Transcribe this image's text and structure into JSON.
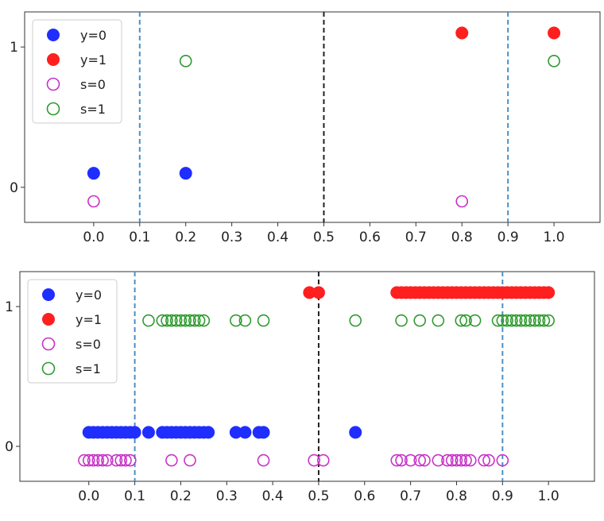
{
  "chart_data": [
    {
      "type": "scatter",
      "xlim": [
        -0.15,
        1.1
      ],
      "ylim": [
        -0.25,
        1.25
      ],
      "x_ticks": [
        "0.0",
        "0.1",
        "0.2",
        "0.3",
        "0.4",
        "0.5",
        "0.6",
        "0.7",
        "0.8",
        "0.9",
        "1.0"
      ],
      "y_ticks": [
        "0",
        "1"
      ],
      "vlines": [
        {
          "x": 0.1,
          "style": "dashed",
          "color": "#4a90c8"
        },
        {
          "x": 0.5,
          "style": "dashed",
          "color": "#222222"
        },
        {
          "x": 0.9,
          "style": "dashed",
          "color": "#4a90c8"
        }
      ],
      "legend": {
        "position": "upper-left",
        "entries": [
          {
            "label": "y=0",
            "marker": "filled",
            "color": "#1f2eff"
          },
          {
            "label": "y=1",
            "marker": "filled",
            "color": "#ff1f1f"
          },
          {
            "label": "s=0",
            "marker": "hollow",
            "color": "#c832c8"
          },
          {
            "label": "s=1",
            "marker": "hollow",
            "color": "#2e9a2e"
          }
        ]
      },
      "series": [
        {
          "name": "y=0",
          "marker": "filled",
          "color": "#1f2eff",
          "y": 0.1,
          "x": [
            0.0,
            0.2
          ]
        },
        {
          "name": "y=1",
          "marker": "filled",
          "color": "#ff1f1f",
          "y": 1.1,
          "x": [
            0.8,
            1.0
          ]
        },
        {
          "name": "s=0",
          "marker": "hollow",
          "color": "#c832c8",
          "y": -0.1,
          "x": [
            0.0,
            0.8
          ]
        },
        {
          "name": "s=1",
          "marker": "hollow",
          "color": "#2e9a2e",
          "y": 0.9,
          "x": [
            0.2,
            1.0
          ]
        }
      ]
    },
    {
      "type": "scatter",
      "xlim": [
        -0.15,
        1.1
      ],
      "ylim": [
        -0.25,
        1.25
      ],
      "x_ticks": [
        "0.0",
        "0.1",
        "0.2",
        "0.3",
        "0.4",
        "0.5",
        "0.6",
        "0.7",
        "0.8",
        "0.9",
        "1.0"
      ],
      "y_ticks": [
        "0",
        "1"
      ],
      "vlines": [
        {
          "x": 0.1,
          "style": "dashed",
          "color": "#4a90c8"
        },
        {
          "x": 0.5,
          "style": "dashed",
          "color": "#222222"
        },
        {
          "x": 0.9,
          "style": "dashed",
          "color": "#4a90c8"
        }
      ],
      "legend": {
        "position": "upper-left",
        "entries": [
          {
            "label": "y=0",
            "marker": "filled",
            "color": "#1f2eff"
          },
          {
            "label": "y=1",
            "marker": "filled",
            "color": "#ff1f1f"
          },
          {
            "label": "s=0",
            "marker": "hollow",
            "color": "#c832c8"
          },
          {
            "label": "s=1",
            "marker": "hollow",
            "color": "#2e9a2e"
          }
        ]
      },
      "series": [
        {
          "name": "y=0",
          "marker": "filled",
          "color": "#1f2eff",
          "y": 0.1,
          "x": [
            0.0,
            0.01,
            0.02,
            0.03,
            0.04,
            0.05,
            0.06,
            0.07,
            0.08,
            0.09,
            0.1,
            0.13,
            0.16,
            0.17,
            0.18,
            0.19,
            0.2,
            0.21,
            0.22,
            0.23,
            0.24,
            0.25,
            0.26,
            0.32,
            0.34,
            0.37,
            0.38,
            0.58
          ]
        },
        {
          "name": "y=1",
          "marker": "filled",
          "color": "#ff1f1f",
          "y": 1.1,
          "x": [
            0.48,
            0.5,
            0.67,
            0.68,
            0.69,
            0.7,
            0.71,
            0.72,
            0.73,
            0.74,
            0.75,
            0.76,
            0.77,
            0.78,
            0.79,
            0.8,
            0.81,
            0.82,
            0.83,
            0.84,
            0.85,
            0.86,
            0.87,
            0.88,
            0.89,
            0.9,
            0.91,
            0.92,
            0.93,
            0.94,
            0.95,
            0.96,
            0.97,
            0.98,
            0.99,
            1.0
          ]
        },
        {
          "name": "s=0",
          "marker": "hollow",
          "color": "#c832c8",
          "y": -0.1,
          "x": [
            -0.01,
            0.0,
            0.01,
            0.02,
            0.03,
            0.04,
            0.06,
            0.07,
            0.08,
            0.09,
            0.18,
            0.22,
            0.38,
            0.49,
            0.51,
            0.67,
            0.68,
            0.7,
            0.72,
            0.73,
            0.76,
            0.78,
            0.79,
            0.8,
            0.81,
            0.82,
            0.83,
            0.86,
            0.87,
            0.9
          ]
        },
        {
          "name": "s=1",
          "marker": "hollow",
          "color": "#2e9a2e",
          "y": 0.9,
          "x": [
            0.13,
            0.16,
            0.17,
            0.18,
            0.19,
            0.2,
            0.21,
            0.22,
            0.23,
            0.24,
            0.25,
            0.32,
            0.34,
            0.38,
            0.58,
            0.68,
            0.72,
            0.76,
            0.81,
            0.82,
            0.84,
            0.89,
            0.9,
            0.91,
            0.92,
            0.93,
            0.94,
            0.95,
            0.96,
            0.97,
            0.98,
            0.99,
            1.0
          ]
        }
      ]
    }
  ]
}
